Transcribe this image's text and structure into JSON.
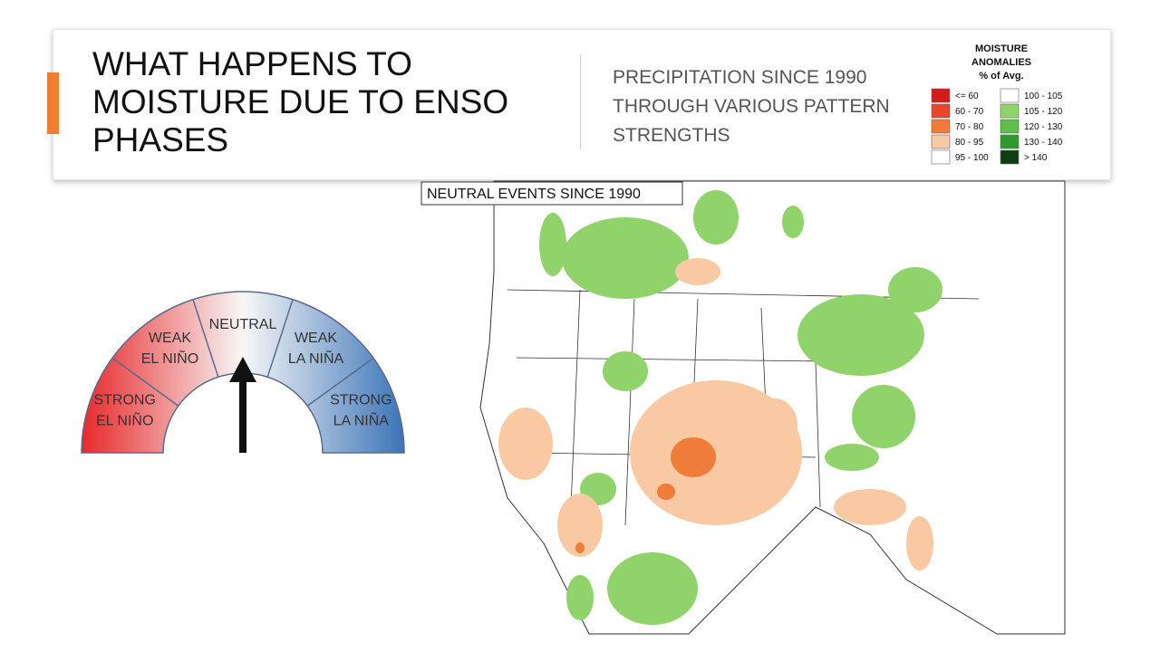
{
  "header": {
    "title": [
      "WHAT HAPPENS TO",
      "MOISTURE DUE TO ENSO",
      "PHASES"
    ],
    "subtitle": [
      "PRECIPITATION SINCE 1990",
      "THROUGH VARIOUS PATTERN",
      "STRENGTHS"
    ]
  },
  "legend": {
    "title": [
      "MOISTURE",
      "ANOMALIES",
      "% of Avg."
    ],
    "entries": [
      {
        "label": "<= 60",
        "color": "#d7191c"
      },
      {
        "label": "60 - 70",
        "color": "#e8472a"
      },
      {
        "label": "70 - 80",
        "color": "#f07c3a"
      },
      {
        "label": "80 - 95",
        "color": "#f9c9a3"
      },
      {
        "label": "95 - 100",
        "color": "#ffffff"
      },
      {
        "label": "100 - 105",
        "color": "#ffffff"
      },
      {
        "label": "105 - 120",
        "color": "#8fd36a"
      },
      {
        "label": "120 - 130",
        "color": "#5cbf4a"
      },
      {
        "label": "130 - 140",
        "color": "#2e9a2e"
      },
      {
        "label": "> 140",
        "color": "#0e3d12"
      }
    ]
  },
  "gauge": {
    "segments": [
      [
        "STRONG",
        "EL NIÑO"
      ],
      [
        "WEAK",
        "EL NIÑO"
      ],
      [
        "NEUTRAL"
      ],
      [
        "WEAK",
        "LA NIÑA"
      ],
      [
        "STRONG",
        "LA NIÑA"
      ]
    ]
  },
  "map": {
    "label": "NEUTRAL EVENTS SINCE 1990"
  }
}
